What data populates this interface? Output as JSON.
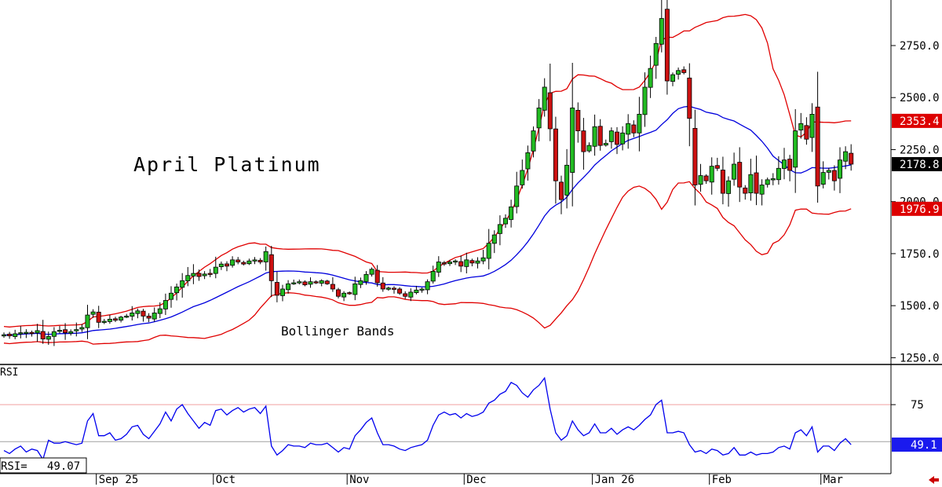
{
  "chart_data": {
    "type": "candlestick",
    "title": "April Platinum",
    "annotations": [
      "Bollinger Bands"
    ],
    "price_axis": {
      "ticks": [
        "1250.0",
        "1500.0",
        "1750.0",
        "2000.0",
        "2250.0",
        "2500.0",
        "2750.0"
      ],
      "range": [
        1225,
        2950
      ]
    },
    "x_axis": {
      "ticks": [
        "Sep 25",
        "Oct",
        "Nov",
        "Dec",
        "Jan 26",
        "Feb",
        "Mar"
      ]
    },
    "price_labels": {
      "upper_band": "2353.4",
      "last_close": "2178.8",
      "lower_band": "1976.9"
    },
    "close": [
      1360,
      1355,
      1365,
      1370,
      1372,
      1368,
      1380,
      1340,
      1352,
      1375,
      1382,
      1370,
      1375,
      1385,
      1395,
      1455,
      1470,
      1420,
      1425,
      1435,
      1430,
      1445,
      1450,
      1465,
      1475,
      1450,
      1440,
      1465,
      1485,
      1525,
      1560,
      1590,
      1620,
      1645,
      1655,
      1640,
      1652,
      1655,
      1685,
      1700,
      1690,
      1720,
      1710,
      1700,
      1715,
      1720,
      1710,
      1760,
      1620,
      1550,
      1580,
      1605,
      1610,
      1615,
      1600,
      1615,
      1610,
      1620,
      1605,
      1580,
      1545,
      1560,
      1560,
      1605,
      1620,
      1650,
      1675,
      1610,
      1580,
      1585,
      1580,
      1560,
      1545,
      1565,
      1575,
      1580,
      1615,
      1665,
      1710,
      1700,
      1710,
      1715,
      1690,
      1720,
      1705,
      1715,
      1730,
      1800,
      1840,
      1890,
      1920,
      1975,
      2075,
      2150,
      2235,
      2340,
      2450,
      2550,
      2350,
      2100,
      2010,
      2175,
      2450,
      2340,
      2240,
      2270,
      2360,
      2270,
      2280,
      2340,
      2275,
      2330,
      2375,
      2330,
      2420,
      2550,
      2640,
      2760,
      2880,
      2580,
      2610,
      2630,
      2620,
      2400,
      2080,
      2125,
      2100,
      2170,
      2160,
      2040,
      2100,
      2180,
      2070,
      2040,
      2130,
      2040,
      2080,
      2105,
      2110,
      2160,
      2200,
      2150,
      2340,
      2375,
      2300,
      2420,
      2075,
      2140,
      2150,
      2100,
      2200,
      2240,
      2180
    ],
    "rsi": {
      "label": "RSI",
      "value_label": "RSI=   49.07",
      "last_label": "49.1",
      "ticks": [
        "75"
      ],
      "overbought": 75,
      "oversold": 50,
      "range": [
        30,
        100
      ],
      "values": [
        44,
        42,
        45,
        47,
        43,
        45,
        44,
        38,
        51,
        49,
        49,
        50,
        49,
        48,
        49,
        64,
        69,
        54,
        54,
        56,
        51,
        52,
        55,
        60,
        61,
        55,
        52,
        57,
        62,
        70,
        64,
        72,
        75,
        69,
        64,
        59,
        63,
        61,
        71,
        72,
        68,
        71,
        73,
        70,
        72,
        73,
        69,
        74,
        47,
        41,
        44,
        48,
        47,
        47,
        46,
        49,
        48,
        48,
        49,
        46,
        43,
        46,
        45,
        54,
        58,
        63,
        66,
        56,
        48,
        48,
        47,
        45,
        44,
        46,
        47,
        48,
        51,
        61,
        68,
        70,
        68,
        69,
        66,
        69,
        67,
        68,
        70,
        76,
        78,
        82,
        84,
        90,
        88,
        83,
        80,
        85,
        88,
        93,
        72,
        56,
        51,
        54,
        64,
        58,
        54,
        56,
        62,
        56,
        56,
        59,
        55,
        58,
        60,
        58,
        61,
        65,
        68,
        75,
        78,
        56,
        56,
        57,
        56,
        48,
        43,
        44,
        42,
        45,
        44,
        41,
        42,
        46,
        41,
        41,
        43,
        41,
        42,
        42,
        43,
        46,
        47,
        45,
        56,
        58,
        54,
        60,
        43,
        47,
        47,
        44,
        49,
        52,
        48
      ]
    },
    "legend": "none",
    "grid": false
  }
}
